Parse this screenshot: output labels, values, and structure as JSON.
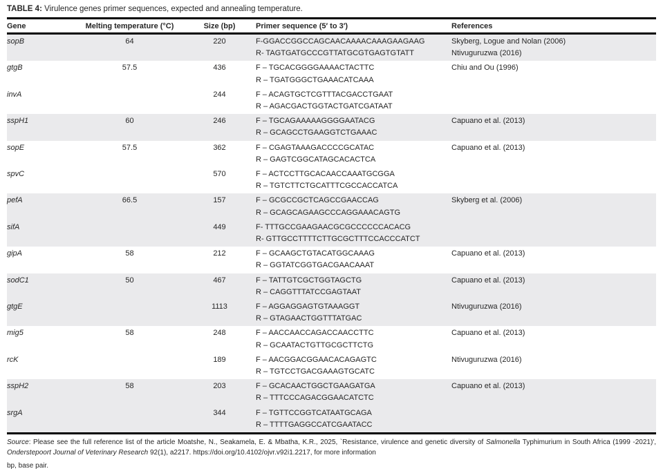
{
  "title": {
    "label": "TABLE 4:",
    "text": " Virulence genes primer sequences, expected and annealing temperature."
  },
  "table": {
    "headers": {
      "gene": "Gene",
      "tm": "Melting temperature (°C)",
      "size": "Size (bp)",
      "primer": "Primer sequence (5′ to 3′)",
      "references": "References"
    },
    "rows": [
      {
        "gene": "sopB",
        "tm": "64",
        "size": "220",
        "primers": [
          "F-GGACCGGCCAGCAACAAAACAAAGAAGAAG",
          "R- TAGTGATGCCCGTTATGCGTGAGTGTATT"
        ],
        "refs": [
          "Skyberg, Logue and Nolan (2006)",
          "Ntivuguruzwa (2016)"
        ],
        "shaded": true
      },
      {
        "gene": "gtgB",
        "tm": "57.5",
        "size": "436",
        "primers": [
          "F – TGCACGGGGAAAACTACTTC",
          "R – TGATGGGCTGAAACATCAAA"
        ],
        "refs": [
          "Chiu and Ou (1996)"
        ],
        "shaded": false
      },
      {
        "gene": "invA",
        "tm": "",
        "size": "244",
        "primers": [
          "F – ACAGTGCTCGTTTACGACCTGAAT",
          "R – AGACGACTGGTACTGATCGATAAT"
        ],
        "refs": [],
        "shaded": false
      },
      {
        "gene": "sspH1",
        "tm": "60",
        "size": "246",
        "primers": [
          "F – TGCAGAAAAAGGGGAATACG",
          "R – GCAGCCTGAAGGTCTGAAAC"
        ],
        "refs": [
          "Capuano et al. (2013)"
        ],
        "shaded": true
      },
      {
        "gene": "sopE",
        "tm": "57.5",
        "size": "362",
        "primers": [
          "F – CGAGTAAAGACCCCGCATAC",
          "R – GAGTCGGCATAGCACACTCA"
        ],
        "refs": [
          "Capuano et al. (2013)"
        ],
        "shaded": false
      },
      {
        "gene": "spvC",
        "tm": "",
        "size": "570",
        "primers": [
          "F – ACTCCTTGCACAACCAAATGCGGA",
          "R – TGTCTTCTGCATTTCGCCACCATCA"
        ],
        "refs": [],
        "shaded": false
      },
      {
        "gene": "pefA",
        "tm": "66.5",
        "size": "157",
        "primers": [
          "F – GCGCCGCTCAGCCGAACCAG",
          "R – GCAGCAGAAGCCCAGGAAACAGTG"
        ],
        "refs": [
          "Skyberg et al. (2006)"
        ],
        "shaded": true
      },
      {
        "gene": "sifA",
        "tm": "",
        "size": "449",
        "primers": [
          "F- TTTGCCGAAGAACGCGCCCCCCACACG",
          "R- GTTGCCTTTTCTTGCGCTTTCCACCCATCT"
        ],
        "refs": [],
        "shaded": true
      },
      {
        "gene": "gipA",
        "tm": "58",
        "size": "212",
        "primers": [
          "F – GCAAGCTGTACATGGCAAAG",
          "R – GGTATCGGTGACGAACAAAT"
        ],
        "refs": [
          "Capuano et al. (2013)"
        ],
        "shaded": false
      },
      {
        "gene": "sodC1",
        "tm": "50",
        "size": "467",
        "primers": [
          "F – TATTGTCGCTGGTAGCTG",
          "R – CAGGTTTATCCGAGTAAT"
        ],
        "refs": [
          "Capuano et al. (2013)"
        ],
        "shaded": true
      },
      {
        "gene": "gtgE",
        "tm": "",
        "size": "1113",
        "primers": [
          "F – AGGAGGAGTGTAAAGGT",
          "R – GTAGAACTGGTTTATGAC"
        ],
        "refs": [
          "Ntivuguruzwa (2016)"
        ],
        "shaded": true
      },
      {
        "gene": "mig5",
        "tm": "58",
        "size": "248",
        "primers": [
          "F – AACCAACCAGACCAACCTTC",
          "R – GCAATACTGTTGCGCTTCTG"
        ],
        "refs": [
          "Capuano et al. (2013)"
        ],
        "shaded": false
      },
      {
        "gene": "rcK",
        "tm": "",
        "size": "189",
        "primers": [
          "F – AACGGACGGAACACAGAGTC",
          "R – TGTCCTGACGAAAGTGCATC"
        ],
        "refs": [
          "Ntivuguruzwa (2016)"
        ],
        "shaded": false
      },
      {
        "gene": "sspH2",
        "tm": "58",
        "size": "203",
        "primers": [
          "F – GCACAACTGGCTGAAGATGA",
          "R – TTTCCCAGACGGAACATCTC"
        ],
        "refs": [
          "Capuano et al. (2013)"
        ],
        "shaded": true
      },
      {
        "gene": "srgA",
        "tm": "",
        "size": "344",
        "primers": [
          "F – TGTTCCGGTCATAATGCAGA",
          "R – TTTTGAGGCCATCGAATACC"
        ],
        "refs": [],
        "shaded": true
      }
    ]
  },
  "footer": {
    "source_segments": [
      {
        "text": "Source",
        "italic": true
      },
      {
        "text": ": Please see the full reference list of the article Moatshe, N., Seakamela, E. & Mbatha, K.R., 2025, `Resistance, virulence and genetic diversity of ",
        "italic": false
      },
      {
        "text": "Salmonella",
        "italic": true
      },
      {
        "text": " Typhimurium in South Africa (1999 -2021)', ",
        "italic": false
      },
      {
        "text": "Onderstepoort Journal of Veterinary Research",
        "italic": true
      },
      {
        "text": " 92(1), a2217. https://doi.org/10.4102/ojvr.v92i1.2217, for more information",
        "italic": false
      }
    ],
    "bp_note": "bp, base pair."
  },
  "colors": {
    "row_shading": "#eaeaec",
    "border": "#000000",
    "text": "#262626"
  }
}
